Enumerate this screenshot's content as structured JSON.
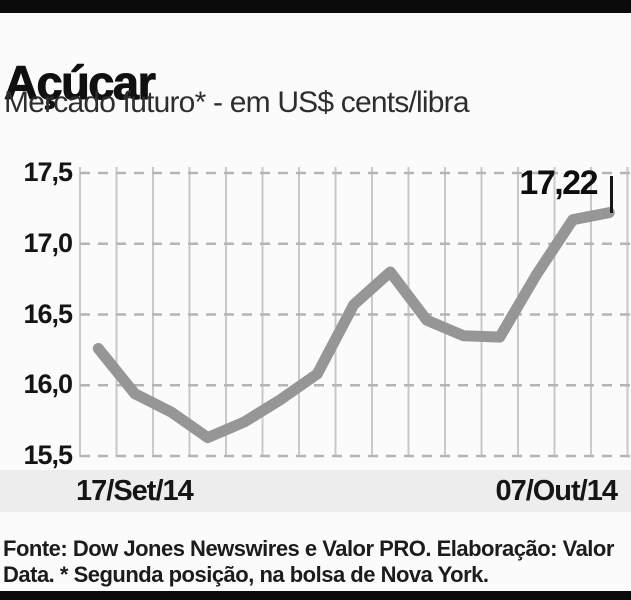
{
  "header": {
    "title": "Açúcar",
    "subtitle": "Mercado futuro* - em US$ cents/libra"
  },
  "chart_data": {
    "type": "line",
    "title": "Açúcar",
    "subtitle": "Mercado futuro* - em US$ cents/libra",
    "unit": "US$ cents/libra",
    "x_axis": {
      "start_label": "17/Set/14",
      "end_label": "07/Out/14"
    },
    "y_ticks": [
      "17,5",
      "17,0",
      "16,5",
      "16,0",
      "15,5"
    ],
    "y_tick_values": [
      17.5,
      17.0,
      16.5,
      16.0,
      15.5
    ],
    "ylim": [
      15.5,
      17.5
    ],
    "values": [
      16.26,
      15.94,
      15.81,
      15.63,
      15.74,
      15.9,
      16.08,
      16.57,
      16.8,
      16.46,
      16.35,
      16.34,
      16.78,
      17.17,
      17.22
    ],
    "last_value": 17.22,
    "last_value_label": "17,22",
    "grid": true,
    "legend": "none",
    "line_color": "#969696",
    "vertical_grid_color": "#c9c9c9",
    "dashed_grid_color": "#b5b5b5"
  },
  "footer": {
    "lines": [
      "Fonte: Dow Jones Newswires e Valor PRO. Elaboração: Valor",
      "Data. * Segunda posição, na bolsa de Nova York."
    ]
  }
}
